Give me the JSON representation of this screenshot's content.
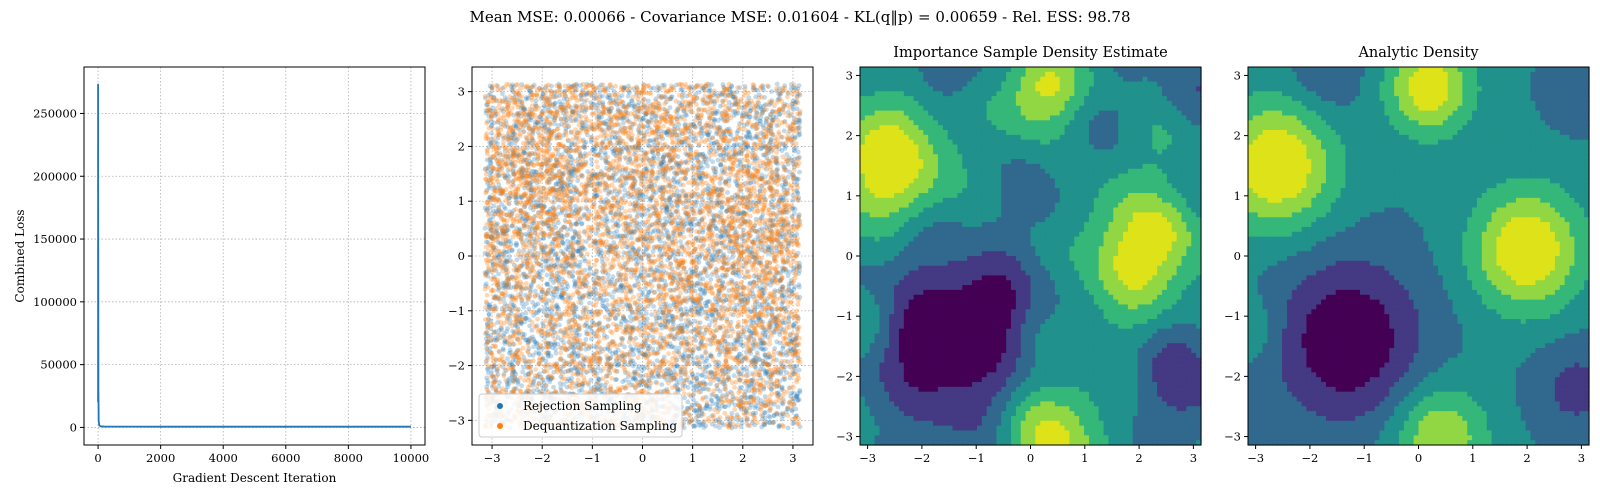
{
  "figure": {
    "suptitle": "Mean MSE: 0.00066 - Covariance MSE: 0.01604 - KL(q‖p) = 0.00659 - Rel. ESS: 98.78"
  },
  "chart_data": [
    {
      "type": "line",
      "title": "",
      "xlabel": "Gradient Descent Iteration",
      "ylabel": "Combined Loss",
      "xlim": [
        -450,
        10450
      ],
      "ylim": [
        -14000,
        287000
      ],
      "xticks": [
        0,
        2000,
        4000,
        6000,
        8000,
        10000
      ],
      "yticks": [
        0,
        50000,
        100000,
        150000,
        200000,
        250000
      ],
      "grid": true,
      "color": "#1f77b4",
      "series": [
        {
          "x": [
            0,
            0,
            5,
            10,
            20,
            40,
            80,
            200,
            500,
            1000,
            2000,
            4000,
            6000,
            8000,
            10000
          ],
          "y": [
            20000,
            273000,
            150000,
            30000,
            5000,
            1500,
            900,
            700,
            650,
            620,
            600,
            590,
            585,
            580,
            578
          ]
        }
      ]
    },
    {
      "type": "scatter",
      "title": "",
      "xlim": [
        -3.4,
        3.4
      ],
      "ylim": [
        -3.45,
        3.45
      ],
      "xticks": [
        -3,
        -2,
        -1,
        0,
        1,
        2,
        3
      ],
      "yticks": [
        -3,
        -2,
        -1,
        0,
        1,
        2,
        3
      ],
      "grid": true,
      "legend_position": "lower-left",
      "series": [
        {
          "name": "Rejection Sampling",
          "color": "#1f77b4",
          "n_points": 5000,
          "distribution": "approximately uniform on [-3.14, 3.14] x [-3.14, 3.14]"
        },
        {
          "name": "Dequantization Sampling",
          "color": "#ff7f0e",
          "n_points": 5000,
          "distribution": "approximately uniform on [-3.14, 3.14] x [-3.14, 3.14], denser at left-upper and right-middle"
        }
      ]
    },
    {
      "type": "heatmap",
      "title": "Importance Sample Density Estimate",
      "xlim": [
        -3.14,
        3.14
      ],
      "ylim": [
        -3.14,
        3.14
      ],
      "xticks": [
        -3,
        -2,
        -1,
        0,
        1,
        2,
        3
      ],
      "yticks": [
        -3,
        -2,
        -1,
        0,
        1,
        2,
        3
      ],
      "colormap": [
        "#440154",
        "#443983",
        "#31688e",
        "#21918c",
        "#35b779",
        "#90d743",
        "#dde318"
      ],
      "noise": true,
      "seed": 7
    },
    {
      "type": "heatmap",
      "title": "Analytic Density",
      "xlim": [
        -3.14,
        3.14
      ],
      "ylim": [
        -3.14,
        3.14
      ],
      "xticks": [
        -3,
        -2,
        -1,
        0,
        1,
        2,
        3
      ],
      "yticks": [
        -3,
        -2,
        -1,
        0,
        1,
        2,
        3
      ],
      "colormap": [
        "#440154",
        "#443983",
        "#31688e",
        "#21918c",
        "#35b779",
        "#90d743",
        "#dde318"
      ],
      "noise": false
    }
  ]
}
